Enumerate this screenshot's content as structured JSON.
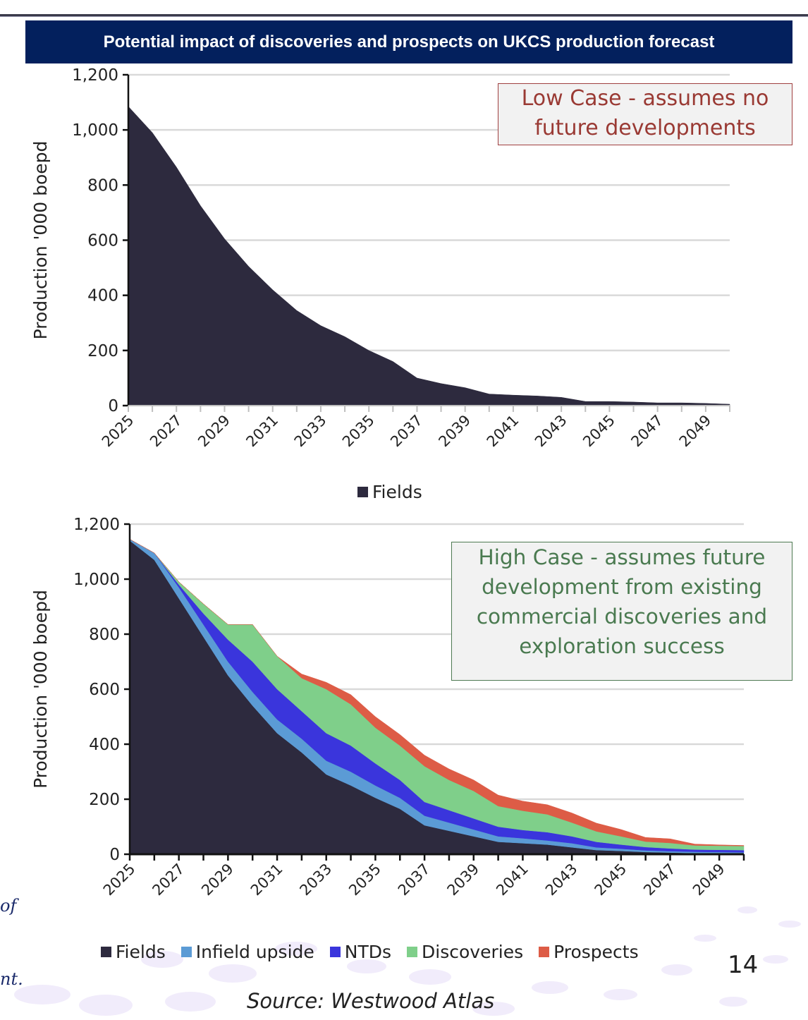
{
  "header": {
    "title": "Potential impact of discoveries and prospects on UKCS production forecast"
  },
  "notes": {
    "low_case": [
      "Low Case - assumes no",
      "future developments"
    ],
    "high_case": [
      "High Case - assumes future",
      "development from existing",
      "commercial discoveries and",
      "exploration success"
    ]
  },
  "footer": {
    "page_number": "14",
    "source": "Source: Westwood Atlas",
    "left_fragment_1": "of",
    "left_fragment_2": "nt."
  },
  "chart_data": [
    {
      "id": "low-case",
      "type": "area",
      "title": "",
      "xlabel": "",
      "ylabel": "Production '000 boepd",
      "ylim": [
        0,
        1200
      ],
      "yticks": [
        0,
        200,
        400,
        600,
        800,
        1000,
        1200
      ],
      "ytick_labels": [
        "0",
        "200",
        "400",
        "600",
        "800",
        "1,000",
        "1,200"
      ],
      "xtick_labels": [
        "2025",
        "2027",
        "2029",
        "2031",
        "2033",
        "2035",
        "2037",
        "2039",
        "2041",
        "2043",
        "2045",
        "2047",
        "2049"
      ],
      "x": [
        2025,
        2026,
        2027,
        2028,
        2029,
        2030,
        2031,
        2032,
        2033,
        2034,
        2035,
        2036,
        2037,
        2038,
        2039,
        2040,
        2041,
        2042,
        2043,
        2044,
        2045,
        2046,
        2047,
        2048,
        2049,
        2050
      ],
      "grid": true,
      "legend_position": "bottom",
      "series": [
        {
          "name": "Fields",
          "color": "#2d2a3e",
          "values": [
            1085,
            990,
            865,
            725,
            605,
            505,
            420,
            345,
            290,
            250,
            200,
            160,
            100,
            80,
            65,
            42,
            38,
            35,
            30,
            15,
            15,
            13,
            10,
            10,
            8,
            5
          ]
        }
      ]
    },
    {
      "id": "high-case",
      "type": "area",
      "stacked": true,
      "title": "",
      "xlabel": "",
      "ylabel": "Production '000 boepd",
      "ylim": [
        0,
        1200
      ],
      "yticks": [
        0,
        200,
        400,
        600,
        800,
        1000,
        1200
      ],
      "ytick_labels": [
        "0",
        "200",
        "400",
        "600",
        "800",
        "1,000",
        "1,200"
      ],
      "xtick_labels": [
        "2025",
        "2027",
        "2029",
        "2031",
        "2033",
        "2035",
        "2037",
        "2039",
        "2041",
        "2043",
        "2045",
        "2047",
        "2049"
      ],
      "x": [
        2025,
        2026,
        2027,
        2028,
        2029,
        2030,
        2031,
        2032,
        2033,
        2034,
        2035,
        2036,
        2037,
        2038,
        2039,
        2040,
        2041,
        2042,
        2043,
        2044,
        2045,
        2046,
        2047,
        2048,
        2049,
        2050
      ],
      "grid": true,
      "legend_position": "bottom",
      "series": [
        {
          "name": "Fields",
          "color": "#2d2a3e",
          "values": [
            1140,
            1070,
            930,
            790,
            650,
            540,
            440,
            370,
            290,
            250,
            205,
            165,
            105,
            85,
            65,
            45,
            40,
            35,
            25,
            15,
            12,
            8,
            6,
            4,
            3,
            2
          ]
        },
        {
          "name": "Infield upside",
          "color": "#5b9bd5",
          "values": [
            5,
            25,
            40,
            45,
            50,
            50,
            50,
            50,
            50,
            50,
            45,
            40,
            35,
            30,
            25,
            20,
            18,
            15,
            15,
            10,
            8,
            6,
            5,
            5,
            5,
            5
          ]
        },
        {
          "name": "NTDs",
          "color": "#3a35dc",
          "values": [
            0,
            0,
            10,
            40,
            80,
            110,
            110,
            100,
            100,
            95,
            80,
            65,
            50,
            45,
            40,
            35,
            30,
            30,
            25,
            20,
            15,
            12,
            10,
            8,
            8,
            8
          ]
        },
        {
          "name": "Discoveries",
          "color": "#7fcf8a",
          "values": [
            0,
            0,
            10,
            35,
            55,
            135,
            120,
            120,
            160,
            150,
            130,
            125,
            130,
            110,
            100,
            75,
            70,
            65,
            50,
            38,
            30,
            20,
            20,
            15,
            15,
            15
          ]
        },
        {
          "name": "Prospects",
          "color": "#dd5c46",
          "values": [
            0,
            0,
            0,
            0,
            0,
            0,
            0,
            15,
            25,
            35,
            40,
            40,
            40,
            40,
            40,
            40,
            35,
            35,
            35,
            30,
            25,
            15,
            15,
            5,
            3,
            2
          ]
        }
      ]
    }
  ]
}
